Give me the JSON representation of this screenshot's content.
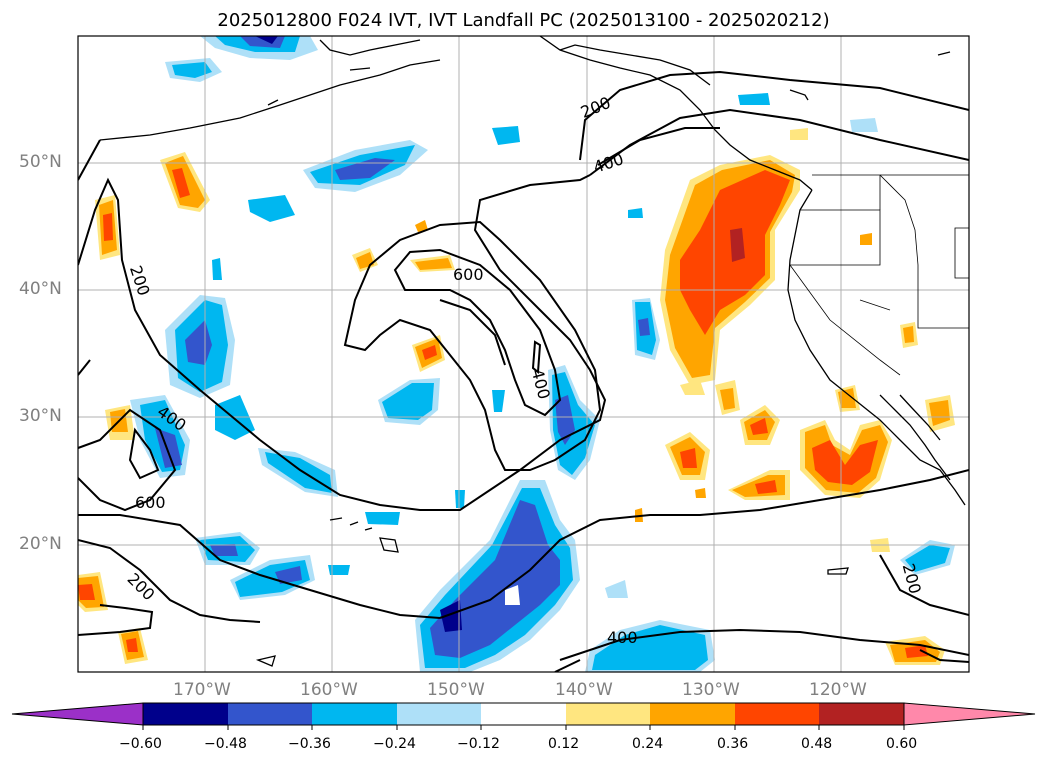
{
  "title": "2025012800 F024 IVT, IVT Landfall PC (2025013100 - 2025020212)",
  "map": {
    "lat_labels": [
      "50°N",
      "40°N",
      "30°N",
      "20°N"
    ],
    "lon_labels": [
      "170°W",
      "160°W",
      "150°W",
      "140°W",
      "130°W",
      "120°W"
    ],
    "contour_labels": [
      "200",
      "400",
      "200",
      "400",
      "600",
      "600",
      "400",
      "200",
      "200",
      "400"
    ],
    "land_color": "#ffffff",
    "grid": true
  },
  "colorbar": {
    "ticks": [
      "−0.60",
      "−0.48",
      "−0.36",
      "−0.24",
      "−0.12",
      "0.12",
      "0.24",
      "0.36",
      "0.48",
      "0.60"
    ],
    "colors": [
      "#9b30c8",
      "#00008b",
      "#3355cc",
      "#00b7f0",
      "#aee0f8",
      "#ffffff",
      "#ffe680",
      "#ffa500",
      "#ff4500",
      "#b22222",
      "#ff88aa"
    ]
  }
}
